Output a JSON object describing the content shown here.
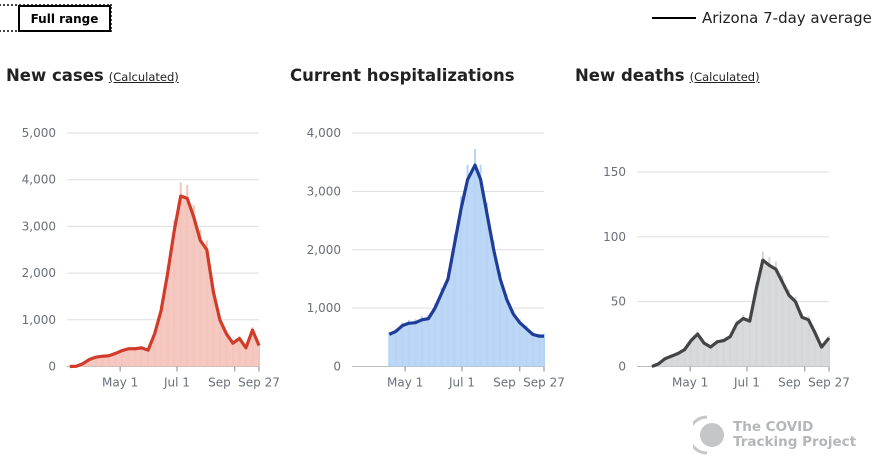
{
  "controls": {
    "range_button": "Full range"
  },
  "legend": {
    "label": "Arizona 7-day average",
    "line_color": "#000000"
  },
  "logo": {
    "line1": "The COVID",
    "line2": "Tracking Project"
  },
  "chart_data": [
    {
      "type": "bar+line",
      "title": "New cases",
      "title_note": "(Calculated)",
      "x_domain": [
        "2020-03-05",
        "2020-09-27"
      ],
      "x_ticks": [
        {
          "date": "2020-05-01",
          "label": "May 1"
        },
        {
          "date": "2020-07-01",
          "label": "Jul 1"
        },
        {
          "date": "2020-09-01",
          "label": "Sep"
        },
        {
          "date": "2020-09-27",
          "label": "Sep 27"
        }
      ],
      "ylim": [
        0,
        5000
      ],
      "y_ticks": [
        0,
        1000,
        2000,
        3000,
        4000,
        5000
      ],
      "y_tick_labels": [
        "0",
        "1,000",
        "2,000",
        "3,000",
        "4,000",
        "5,000"
      ],
      "grid": true,
      "bar_color": "#f4c3ba",
      "line_color": "#d13c2a",
      "series": [
        {
          "x": [
            "2020-03-08",
            "2020-03-15",
            "2020-03-22",
            "2020-03-29",
            "2020-04-05",
            "2020-04-12",
            "2020-04-19",
            "2020-04-26",
            "2020-05-03",
            "2020-05-10",
            "2020-05-17",
            "2020-05-24",
            "2020-05-31",
            "2020-06-07",
            "2020-06-14",
            "2020-06-21",
            "2020-06-28",
            "2020-07-05",
            "2020-07-12",
            "2020-07-19",
            "2020-07-26",
            "2020-08-02",
            "2020-08-09",
            "2020-08-16",
            "2020-08-23",
            "2020-08-30",
            "2020-09-06",
            "2020-09-13",
            "2020-09-20",
            "2020-09-27"
          ],
          "y": [
            0,
            5,
            60,
            150,
            200,
            220,
            230,
            280,
            340,
            380,
            380,
            400,
            350,
            700,
            1200,
            2000,
            2900,
            3650,
            3600,
            3200,
            2700,
            2500,
            1600,
            1000,
            700,
            500,
            600,
            400,
            780,
            450
          ]
        }
      ]
    },
    {
      "type": "bar+line",
      "title": "Current hospitalizations",
      "x_domain": [
        "2020-03-05",
        "2020-09-27"
      ],
      "x_ticks": [
        {
          "date": "2020-05-01",
          "label": "May 1"
        },
        {
          "date": "2020-07-01",
          "label": "Jul 1"
        },
        {
          "date": "2020-09-01",
          "label": "Sep"
        },
        {
          "date": "2020-09-27",
          "label": "Sep 27"
        }
      ],
      "ylim": [
        0,
        4000
      ],
      "y_ticks": [
        0,
        1000,
        2000,
        3000,
        4000
      ],
      "y_tick_labels": [
        "0",
        "1,000",
        "2,000",
        "3,000",
        "4,000"
      ],
      "grid": true,
      "bar_color": "#b6d4f5",
      "line_color": "#1f3c99",
      "series": [
        {
          "x": [
            "2020-04-14",
            "2020-04-21",
            "2020-04-28",
            "2020-05-05",
            "2020-05-12",
            "2020-05-19",
            "2020-05-26",
            "2020-06-02",
            "2020-06-09",
            "2020-06-16",
            "2020-06-23",
            "2020-06-30",
            "2020-07-07",
            "2020-07-15",
            "2020-07-21",
            "2020-07-28",
            "2020-08-04",
            "2020-08-11",
            "2020-08-18",
            "2020-08-25",
            "2020-09-01",
            "2020-09-08",
            "2020-09-15",
            "2020-09-22",
            "2020-09-27"
          ],
          "y": [
            550,
            600,
            700,
            740,
            750,
            800,
            820,
            1000,
            1250,
            1500,
            2100,
            2700,
            3200,
            3450,
            3200,
            2600,
            2000,
            1500,
            1150,
            900,
            750,
            650,
            550,
            520,
            520
          ]
        }
      ]
    },
    {
      "type": "bar+line",
      "title": "New deaths",
      "title_note": "(Calculated)",
      "x_domain": [
        "2020-03-05",
        "2020-09-27"
      ],
      "x_ticks": [
        {
          "date": "2020-05-01",
          "label": "May 1"
        },
        {
          "date": "2020-07-01",
          "label": "Jul 1"
        },
        {
          "date": "2020-09-01",
          "label": "Sep"
        },
        {
          "date": "2020-09-27",
          "label": "Sep 27"
        }
      ],
      "ylim": [
        0,
        180
      ],
      "y_ticks": [
        0,
        50,
        100,
        150
      ],
      "y_tick_labels": [
        "0",
        "50",
        "100",
        "150"
      ],
      "grid": true,
      "bar_color": "#d4d6d8",
      "line_color": "#444444",
      "series": [
        {
          "x": [
            "2020-03-21",
            "2020-03-28",
            "2020-04-04",
            "2020-04-11",
            "2020-04-18",
            "2020-04-25",
            "2020-05-02",
            "2020-05-09",
            "2020-05-16",
            "2020-05-23",
            "2020-05-30",
            "2020-06-06",
            "2020-06-13",
            "2020-06-20",
            "2020-06-27",
            "2020-07-04",
            "2020-07-11",
            "2020-07-18",
            "2020-07-25",
            "2020-08-01",
            "2020-08-08",
            "2020-08-15",
            "2020-08-22",
            "2020-08-29",
            "2020-09-05",
            "2020-09-12",
            "2020-09-19",
            "2020-09-27"
          ],
          "y": [
            0,
            2,
            6,
            8,
            10,
            13,
            20,
            25,
            18,
            15,
            19,
            20,
            23,
            33,
            37,
            35,
            60,
            82,
            78,
            75,
            65,
            55,
            50,
            38,
            36,
            26,
            15,
            22
          ]
        }
      ]
    }
  ]
}
